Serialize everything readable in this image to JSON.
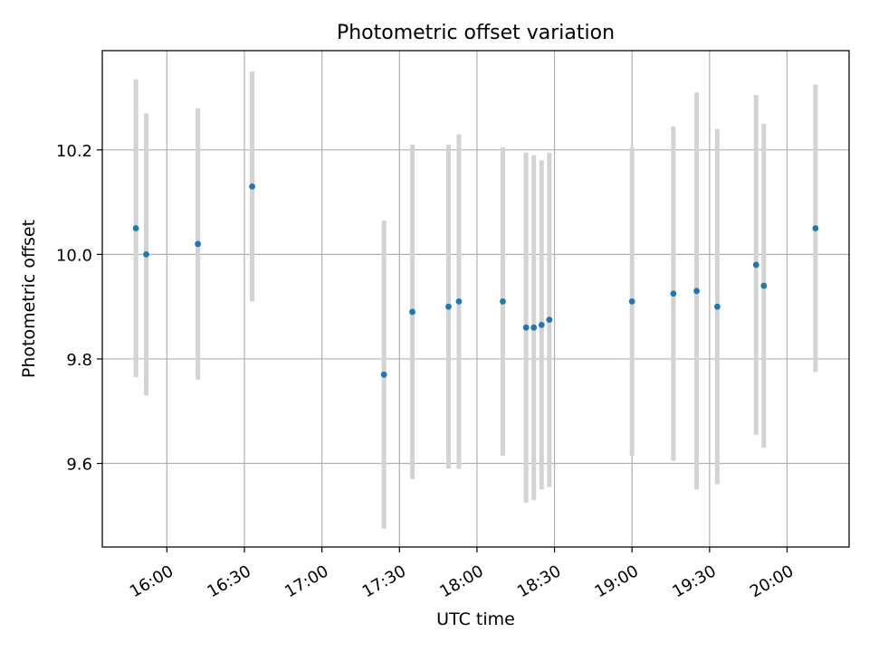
{
  "chart_data": {
    "type": "scatter",
    "title": "Photometric offset variation",
    "xlabel": "UTC time",
    "ylabel": "Photometric offset",
    "x_ticks": [
      "16:00",
      "16:30",
      "17:00",
      "17:30",
      "18:00",
      "18:30",
      "19:00",
      "19:30",
      "20:00"
    ],
    "y_ticks": [
      "9.6",
      "9.8",
      "10.0",
      "10.2"
    ],
    "xlim": [
      "15:35",
      "20:24"
    ],
    "ylim": [
      9.44,
      10.39
    ],
    "grid": true,
    "colors": {
      "points": "#1f77b4",
      "errorbars": "#d3d3d3",
      "grid": "#b0b0b0"
    },
    "series": [
      {
        "x": [
          "15:48",
          "15:52",
          "16:12",
          "16:33",
          "17:24",
          "17:35",
          "17:49",
          "17:53",
          "18:10",
          "18:19",
          "18:22",
          "18:25",
          "18:28",
          "19:00",
          "19:16",
          "19:25",
          "19:33",
          "19:48",
          "19:51",
          "20:11"
        ],
        "y": [
          10.05,
          10.0,
          10.02,
          10.13,
          9.77,
          9.89,
          9.9,
          9.91,
          9.91,
          9.86,
          9.86,
          9.865,
          9.875,
          9.91,
          9.925,
          9.93,
          9.9,
          9.98,
          9.94,
          10.05
        ],
        "yerr": [
          0.285,
          0.27,
          0.26,
          0.22,
          0.295,
          0.32,
          0.31,
          0.32,
          0.295,
          0.335,
          0.33,
          0.315,
          0.32,
          0.295,
          0.32,
          0.38,
          0.34,
          0.325,
          0.31,
          0.275
        ]
      }
    ]
  }
}
